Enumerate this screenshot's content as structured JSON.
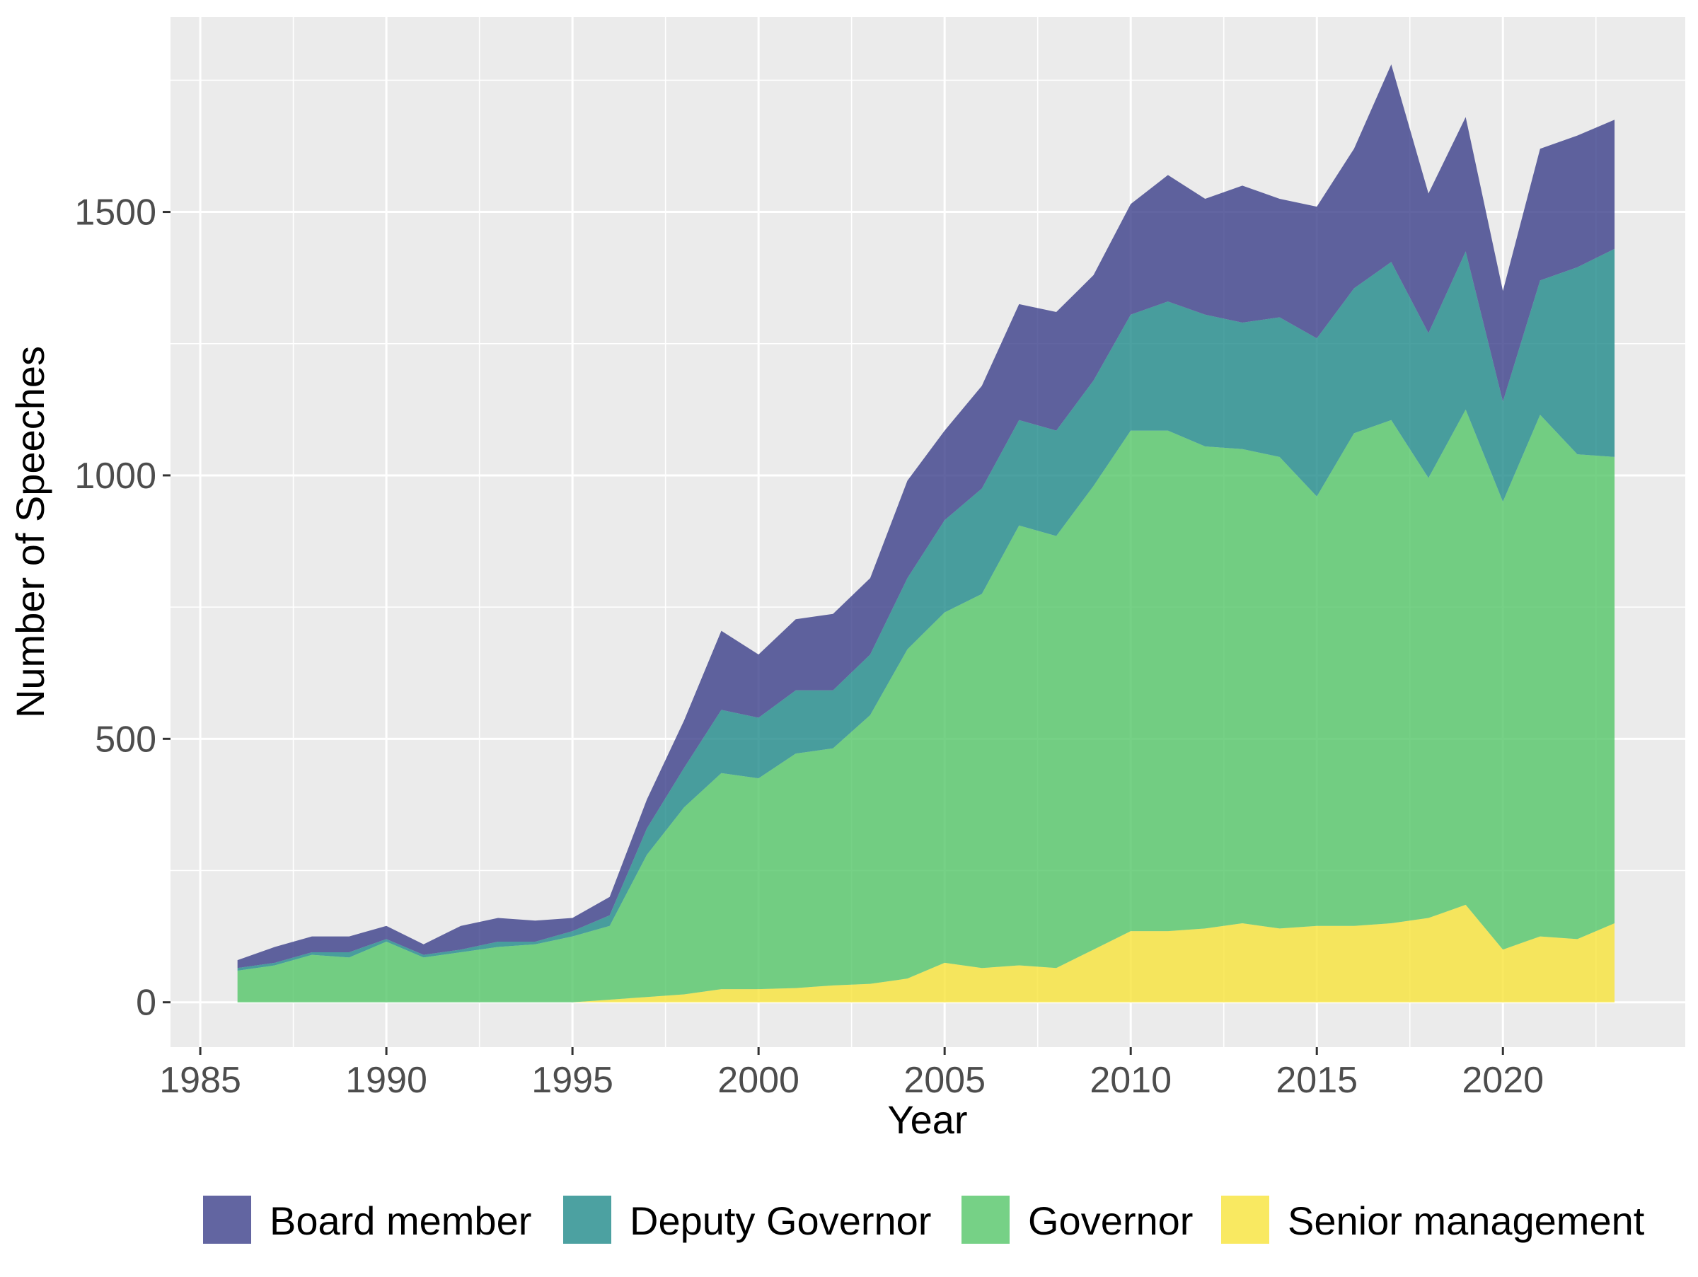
{
  "chart_data": {
    "type": "area",
    "stacked": true,
    "xlabel": "Year",
    "ylabel": "Number of Speeches",
    "xlim": [
      1984.2,
      2024.9
    ],
    "ylim": [
      -85,
      1870
    ],
    "xticks": [
      1985,
      1990,
      1995,
      2000,
      2005,
      2010,
      2015,
      2020
    ],
    "xticks_minor": [
      1987.5,
      1992.5,
      1997.5,
      2002.5,
      2007.5,
      2012.5,
      2017.5,
      2022.5
    ],
    "yticks": [
      0,
      500,
      1000,
      1500
    ],
    "yticks_minor": [
      250,
      750,
      1250,
      1750
    ],
    "grid": true,
    "legend_position": "bottom",
    "x": [
      1986,
      1987,
      1988,
      1989,
      1990,
      1991,
      1992,
      1993,
      1994,
      1995,
      1996,
      1997,
      1998,
      1999,
      2000,
      2001,
      2002,
      2003,
      2004,
      2005,
      2006,
      2007,
      2008,
      2009,
      2010,
      2011,
      2012,
      2013,
      2014,
      2015,
      2016,
      2017,
      2018,
      2019,
      2020,
      2021,
      2022,
      2023
    ],
    "series": [
      {
        "name": "Board member",
        "color": "#3b3f8a",
        "values": [
          15,
          30,
          30,
          30,
          25,
          20,
          45,
          45,
          40,
          25,
          35,
          55,
          90,
          150,
          120,
          135,
          145,
          145,
          185,
          170,
          195,
          220,
          225,
          200,
          210,
          240,
          220,
          260,
          225,
          250,
          265,
          375,
          265,
          255,
          210,
          250,
          250,
          245
        ]
      },
      {
        "name": "Deputy Governor",
        "color": "#1f8a8a",
        "values": [
          5,
          5,
          5,
          10,
          5,
          5,
          5,
          10,
          5,
          10,
          20,
          50,
          75,
          120,
          115,
          120,
          110,
          115,
          135,
          175,
          200,
          200,
          200,
          200,
          220,
          245,
          250,
          240,
          265,
          300,
          275,
          300,
          275,
          300,
          190,
          255,
          355,
          395
        ]
      },
      {
        "name": "Governor",
        "color": "#54c668",
        "values": [
          60,
          70,
          90,
          85,
          115,
          85,
          95,
          105,
          110,
          125,
          140,
          270,
          355,
          410,
          400,
          445,
          450,
          510,
          625,
          665,
          710,
          835,
          820,
          880,
          950,
          950,
          915,
          900,
          895,
          815,
          935,
          955,
          835,
          940,
          850,
          990,
          920,
          885
        ]
      },
      {
        "name": "Senior management",
        "color": "#f7e33a",
        "values": [
          0,
          0,
          0,
          0,
          0,
          0,
          0,
          0,
          0,
          0,
          5,
          10,
          15,
          25,
          25,
          27,
          32,
          35,
          45,
          75,
          65,
          70,
          65,
          100,
          135,
          135,
          140,
          150,
          140,
          145,
          145,
          150,
          160,
          185,
          100,
          125,
          120,
          150
        ]
      }
    ]
  }
}
